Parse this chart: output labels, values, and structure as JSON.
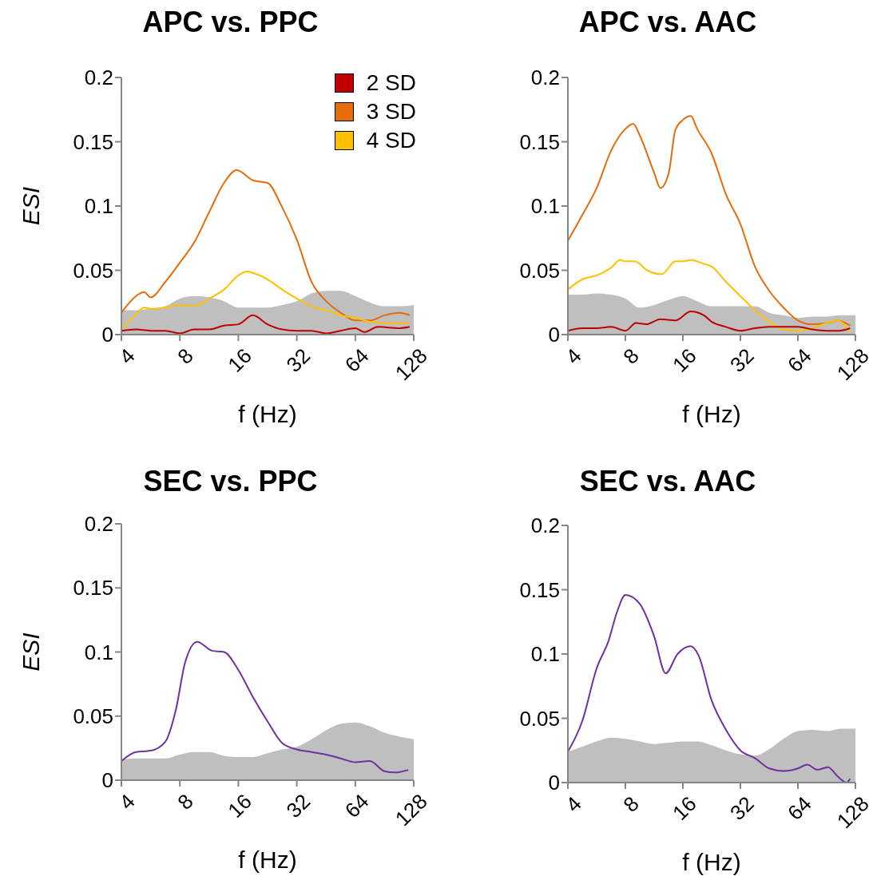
{
  "chart_data": [
    {
      "type": "line",
      "title": "APC vs. PPC",
      "xlabel": "f (Hz)",
      "ylabel": "ESI",
      "log": "x",
      "xlim": [
        4,
        128
      ],
      "xticks": [
        4,
        8,
        16,
        32,
        64,
        128
      ],
      "ylim": [
        0,
        0.2
      ],
      "yticks": [
        0,
        0.05,
        0.1,
        0.15,
        0.2
      ],
      "legend": "top right",
      "series": [
        {
          "type": "area",
          "color": "#bfbfbf",
          "x": [
            4,
            4.76,
            5.66,
            6.73,
            8,
            9.51,
            11.3,
            13.5,
            16,
            19,
            22.6,
            26.9,
            32,
            38.1,
            45.3,
            53.8,
            64,
            76.1,
            90.5,
            108,
            128
          ],
          "values": [
            0.019,
            0.019,
            0.02,
            0.022,
            0.028,
            0.03,
            0.029,
            0.026,
            0.021,
            0.021,
            0.021,
            0.023,
            0.026,
            0.032,
            0.034,
            0.034,
            0.03,
            0.025,
            0.022,
            0.022,
            0.023
          ]
        },
        {
          "name": "2 SD",
          "color": "#c00000",
          "x": [
            4,
            4.76,
            5.66,
            6.73,
            8,
            9.51,
            11.3,
            13.5,
            16,
            19,
            22.6,
            26.9,
            32,
            38.1,
            45.3,
            53.8,
            64,
            71.2,
            83.8,
            108,
            122
          ],
          "values": [
            0.003,
            0.004,
            0.003,
            0.003,
            0.001,
            0.004,
            0.004,
            0.007,
            0.008,
            0.015,
            0.008,
            0.004,
            0.003,
            0.003,
            0.001,
            0.003,
            0.005,
            0.002,
            0.006,
            0.005,
            0.006
          ]
        },
        {
          "name": "3 SD",
          "color": "#e46c0a",
          "x": [
            4,
            4.76,
            5.24,
            5.66,
            6.73,
            8,
            9.51,
            11.3,
            13.5,
            15.7,
            19,
            22.6,
            26.9,
            32,
            38.1,
            45.3,
            53.8,
            64,
            76.1,
            90.5,
            108,
            122
          ],
          "values": [
            0.017,
            0.03,
            0.033,
            0.029,
            0.041,
            0.056,
            0.072,
            0.095,
            0.118,
            0.128,
            0.12,
            0.118,
            0.099,
            0.074,
            0.041,
            0.026,
            0.017,
            0.011,
            0.011,
            0.015,
            0.017,
            0.015
          ]
        },
        {
          "name": "4 SD",
          "color": "#ffc000",
          "x": [
            4,
            4.76,
            5.24,
            5.66,
            6.73,
            8,
            9.51,
            11.3,
            13.5,
            16,
            17.8,
            19,
            22.6,
            26.9,
            32,
            38.1,
            45.3,
            53.8,
            64,
            76.1,
            90.5,
            108,
            122
          ],
          "values": [
            0.004,
            0.016,
            0.021,
            0.02,
            0.021,
            0.023,
            0.022,
            0.028,
            0.035,
            0.046,
            0.049,
            0.048,
            0.043,
            0.035,
            0.028,
            0.022,
            0.019,
            0.015,
            0.013,
            0.01,
            0.009,
            0.009,
            0.009
          ]
        }
      ]
    },
    {
      "type": "line",
      "title": "APC vs. AAC",
      "xlabel": "f (Hz)",
      "log": "x",
      "xlim": [
        4,
        128
      ],
      "xticks": [
        4,
        8,
        16,
        32,
        64,
        128
      ],
      "ylim": [
        0,
        0.2
      ],
      "yticks": [
        0,
        0.05,
        0.1,
        0.15,
        0.2
      ],
      "series": [
        {
          "type": "area",
          "color": "#bfbfbf",
          "x": [
            4,
            4.76,
            5.66,
            6.73,
            8,
            9.51,
            11.3,
            13.5,
            16,
            19,
            22.6,
            26.9,
            32,
            38.1,
            45.3,
            53.8,
            64,
            76.1,
            90.5,
            108,
            128
          ],
          "values": [
            0.031,
            0.031,
            0.032,
            0.031,
            0.028,
            0.021,
            0.023,
            0.027,
            0.03,
            0.026,
            0.022,
            0.022,
            0.022,
            0.022,
            0.017,
            0.015,
            0.013,
            0.014,
            0.014,
            0.015,
            0.015
          ]
        },
        {
          "color": "#e46c0a",
          "x": [
            4,
            4.76,
            5.66,
            6.73,
            8,
            8.79,
            9.51,
            11.3,
            12.2,
            13.5,
            14.6,
            16,
            17.6,
            19,
            22.6,
            26.9,
            32,
            38.1,
            45.3,
            53.8,
            64,
            76.1,
            90.5,
            103,
            120
          ],
          "values": [
            0.073,
            0.093,
            0.114,
            0.143,
            0.16,
            0.164,
            0.155,
            0.126,
            0.114,
            0.126,
            0.159,
            0.167,
            0.17,
            0.16,
            0.141,
            0.109,
            0.086,
            0.053,
            0.034,
            0.021,
            0.011,
            0.008,
            0.009,
            0.011,
            0.007
          ]
        },
        {
          "color": "#ffc000",
          "x": [
            4,
            4.76,
            5.66,
            6.73,
            7.51,
            8,
            8.97,
            10.4,
            12.4,
            14.6,
            16,
            17.6,
            20.6,
            22.6,
            26.9,
            32,
            38.1,
            45.3,
            53.8,
            64,
            76.1,
            90.5,
            103,
            120
          ],
          "values": [
            0.035,
            0.043,
            0.046,
            0.052,
            0.058,
            0.057,
            0.057,
            0.05,
            0.047,
            0.057,
            0.057,
            0.058,
            0.055,
            0.053,
            0.041,
            0.03,
            0.019,
            0.01,
            0.004,
            0.003,
            0.005,
            0.009,
            0.011,
            0.002
          ]
        },
        {
          "color": "#c00000",
          "x": [
            4,
            4.76,
            5.66,
            6.73,
            8,
            9.08,
            10.3,
            12.2,
            14.6,
            17.6,
            20.6,
            22.6,
            26.9,
            32,
            38.1,
            45.3,
            53.8,
            64,
            76.1,
            90.5,
            105,
            120
          ],
          "values": [
            0.003,
            0.005,
            0.005,
            0.006,
            0.003,
            0.009,
            0.008,
            0.012,
            0.011,
            0.018,
            0.015,
            0.01,
            0.006,
            0.003,
            0.005,
            0.006,
            0.006,
            0.006,
            0.004,
            0.003,
            0.003,
            0.005
          ]
        }
      ]
    },
    {
      "type": "line",
      "title": "SEC vs. PPC",
      "xlabel": "f (Hz)",
      "ylabel": "ESI",
      "log": "x",
      "xlim": [
        4,
        128
      ],
      "xticks": [
        4,
        8,
        16,
        32,
        64,
        128
      ],
      "ylim": [
        0,
        0.2
      ],
      "yticks": [
        0,
        0.05,
        0.1,
        0.15,
        0.2
      ],
      "series": [
        {
          "type": "area",
          "color": "#bfbfbf",
          "x": [
            4,
            4.76,
            5.66,
            6.73,
            8,
            9.51,
            11.3,
            13.5,
            16,
            19,
            22.6,
            26.9,
            32,
            38.1,
            45.3,
            53.8,
            64,
            76.1,
            90.5,
            108,
            128
          ],
          "values": [
            0.016,
            0.017,
            0.017,
            0.017,
            0.02,
            0.022,
            0.022,
            0.019,
            0.018,
            0.018,
            0.021,
            0.024,
            0.026,
            0.032,
            0.039,
            0.044,
            0.045,
            0.042,
            0.037,
            0.034,
            0.032
          ]
        },
        {
          "color": "#7030a0",
          "x": [
            4,
            4.76,
            5.66,
            6.73,
            7.63,
            8.52,
            9.82,
            11.7,
            13.5,
            16,
            19,
            22.6,
            26.9,
            32,
            38.1,
            45.3,
            53.8,
            64,
            76.1,
            90.5,
            102,
            120
          ],
          "values": [
            0.015,
            0.022,
            0.023,
            0.03,
            0.055,
            0.092,
            0.108,
            0.101,
            0.1,
            0.086,
            0.065,
            0.046,
            0.029,
            0.024,
            0.022,
            0.02,
            0.017,
            0.014,
            0.015,
            0.007,
            0.006,
            0.008
          ]
        }
      ]
    },
    {
      "type": "line",
      "title": "SEC vs. AAC",
      "xlabel": "f (Hz)",
      "log": "x",
      "xlim": [
        4,
        128
      ],
      "xticks": [
        4,
        8,
        16,
        32,
        64,
        128
      ],
      "ylim": [
        0,
        0.2
      ],
      "yticks": [
        0,
        0.05,
        0.1,
        0.15,
        0.2
      ],
      "series": [
        {
          "type": "area",
          "color": "#bfbfbf",
          "x": [
            4,
            4.76,
            5.66,
            6.73,
            8,
            9.51,
            11.3,
            13.5,
            16,
            19,
            22.6,
            26.9,
            32,
            38.1,
            45.3,
            53.8,
            64,
            76.1,
            90.5,
            108,
            128
          ],
          "values": [
            0.024,
            0.028,
            0.032,
            0.035,
            0.034,
            0.032,
            0.03,
            0.031,
            0.032,
            0.032,
            0.029,
            0.025,
            0.022,
            0.021,
            0.026,
            0.034,
            0.04,
            0.041,
            0.04,
            0.042,
            0.042
          ]
        },
        {
          "color": "#7030a0",
          "x": [
            4,
            4.76,
            5.66,
            6.52,
            7.28,
            8,
            9.51,
            11.3,
            13,
            15,
            17.6,
            19.3,
            22.6,
            26.9,
            32,
            38.1,
            45.3,
            53.8,
            64,
            71.5,
            81,
            92,
            103,
            115,
            120
          ],
          "values": [
            0.024,
            0.048,
            0.089,
            0.11,
            0.134,
            0.146,
            0.139,
            0.114,
            0.085,
            0.1,
            0.106,
            0.099,
            0.064,
            0.041,
            0.025,
            0.019,
            0.011,
            0.009,
            0.011,
            0.014,
            0.01,
            0.012,
            0.005,
            0,
            0.003
          ]
        }
      ]
    }
  ]
}
